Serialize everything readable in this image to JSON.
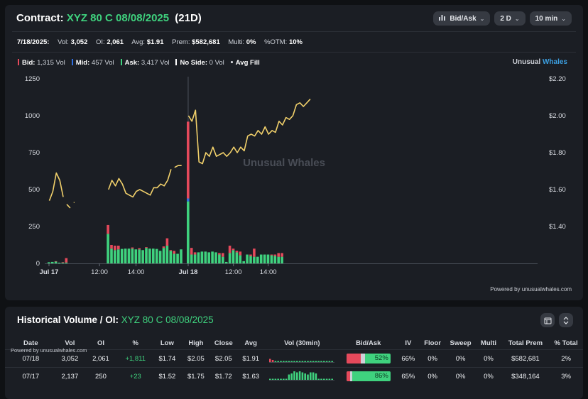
{
  "header": {
    "label": "Contract:",
    "contract": "XYZ 80 C 08/08/2025",
    "dte": "(21D)",
    "controls": [
      {
        "label": "Bid/Ask",
        "icon": "bar-chart-icon"
      },
      {
        "label": "2 D"
      },
      {
        "label": "10 min"
      }
    ]
  },
  "stats": {
    "date": "7/18/2025:",
    "items": [
      {
        "label": "Vol:",
        "value": "3,052"
      },
      {
        "label": "OI:",
        "value": "2,061"
      },
      {
        "label": "Avg:",
        "value": "$1.91"
      },
      {
        "label": "Prem:",
        "value": "$582,681"
      },
      {
        "label": "Multi:",
        "value": "0%"
      },
      {
        "label": "%OTM:",
        "value": "10%"
      }
    ]
  },
  "legend": [
    {
      "label": "Bid:",
      "value": "1,315 Vol",
      "color": "#e5495b"
    },
    {
      "label": "Mid:",
      "value": "457 Vol",
      "color": "#2f6fe0"
    },
    {
      "label": "Ask:",
      "value": "3,417 Vol",
      "color": "#3fd27e"
    },
    {
      "label": "No Side:",
      "value": "0 Vol",
      "color": "#ffffff"
    },
    {
      "label": "Avg Fill",
      "value": "",
      "color": "#f2d16b"
    }
  ],
  "brand": {
    "a": "Unusual",
    "b": "Whales"
  },
  "watermark": "Unusual Whales",
  "powered": "Powered by unusualwhales.com",
  "chart_data": {
    "type": "bar+line",
    "x_ticks": [
      "Jul 17",
      "12:00",
      "14:00",
      "Jul 18",
      "12:00",
      "14:00"
    ],
    "y_left_ticks": [
      "0",
      "250",
      "500",
      "750",
      "1000",
      "1250"
    ],
    "y_right_ticks": [
      "$1.40",
      "$1.60",
      "$1.80",
      "$2.00",
      "$2.20"
    ],
    "ylim_left": [
      0,
      1250
    ],
    "ylim_right": [
      1.2,
      2.2
    ],
    "volume_bars": [
      [
        0,
        8,
        0,
        0
      ],
      [
        1,
        10,
        0,
        0
      ],
      [
        2,
        12,
        0,
        3
      ],
      [
        3,
        5,
        0,
        0
      ],
      [
        4,
        5,
        0,
        3
      ],
      [
        5,
        6,
        0,
        30
      ],
      [
        17,
        200,
        0,
        60
      ],
      [
        18,
        100,
        0,
        25
      ],
      [
        19,
        90,
        0,
        30
      ],
      [
        20,
        95,
        0,
        25
      ],
      [
        21,
        98,
        0,
        0
      ],
      [
        22,
        100,
        0,
        0
      ],
      [
        23,
        100,
        0,
        0
      ],
      [
        24,
        100,
        0,
        8
      ],
      [
        25,
        95,
        0,
        0
      ],
      [
        26,
        95,
        0,
        8
      ],
      [
        27,
        90,
        0,
        0
      ],
      [
        28,
        105,
        0,
        5
      ],
      [
        29,
        100,
        0,
        0
      ],
      [
        30,
        100,
        0,
        0
      ],
      [
        31,
        98,
        0,
        0
      ],
      [
        32,
        85,
        0,
        0
      ],
      [
        33,
        105,
        0,
        10
      ],
      [
        34,
        120,
        0,
        50
      ],
      [
        35,
        85,
        0,
        5
      ],
      [
        36,
        65,
        0,
        20
      ],
      [
        37,
        65,
        0,
        0
      ],
      [
        38,
        95,
        0,
        0
      ],
      [
        40,
        420,
        20,
        520
      ],
      [
        41,
        60,
        0,
        45
      ],
      [
        42,
        60,
        0,
        15
      ],
      [
        43,
        75,
        0,
        0
      ],
      [
        44,
        80,
        0,
        0
      ],
      [
        45,
        80,
        0,
        0
      ],
      [
        46,
        75,
        0,
        0
      ],
      [
        47,
        80,
        0,
        0
      ],
      [
        48,
        75,
        0,
        0
      ],
      [
        49,
        60,
        0,
        10
      ],
      [
        50,
        45,
        0,
        25
      ],
      [
        51,
        10,
        0,
        0
      ],
      [
        52,
        70,
        0,
        50
      ],
      [
        53,
        90,
        0,
        10
      ],
      [
        54,
        75,
        0,
        10
      ],
      [
        55,
        55,
        0,
        25
      ],
      [
        56,
        15,
        0,
        0
      ],
      [
        57,
        60,
        0,
        0
      ],
      [
        58,
        50,
        0,
        10
      ],
      [
        59,
        45,
        0,
        55
      ],
      [
        60,
        45,
        0,
        0
      ],
      [
        61,
        60,
        0,
        0
      ],
      [
        62,
        60,
        0,
        0
      ],
      [
        63,
        60,
        0,
        0
      ],
      [
        64,
        55,
        0,
        5
      ],
      [
        65,
        50,
        0,
        10
      ],
      [
        66,
        45,
        0,
        25
      ],
      [
        67,
        45,
        0,
        25
      ]
    ],
    "avg_fill_segments": [
      [
        [
          0,
          1.54
        ],
        [
          1,
          1.59
        ],
        [
          2,
          1.69
        ],
        [
          3,
          1.65
        ],
        [
          4,
          1.56
        ]
      ],
      [
        [
          5,
          1.52
        ],
        [
          6,
          1.5
        ]
      ],
      [
        [
          7,
          1.53
        ],
        [
          7.2,
          1.53
        ]
      ],
      [
        [
          17,
          1.6
        ],
        [
          18,
          1.65
        ],
        [
          19,
          1.62
        ],
        [
          20,
          1.66
        ],
        [
          21,
          1.63
        ],
        [
          22,
          1.58
        ],
        [
          23,
          1.57
        ],
        [
          24,
          1.56
        ],
        [
          25,
          1.59
        ],
        [
          26,
          1.6
        ],
        [
          27,
          1.59
        ],
        [
          28,
          1.58
        ],
        [
          29,
          1.57
        ],
        [
          30,
          1.61
        ],
        [
          31,
          1.61
        ],
        [
          32,
          1.63
        ],
        [
          33,
          1.62
        ],
        [
          34,
          1.65
        ],
        [
          35,
          1.71
        ]
      ],
      [
        [
          36,
          1.72
        ],
        [
          37,
          1.73
        ],
        [
          38,
          1.73
        ]
      ],
      [
        [
          40,
          2.0
        ],
        [
          41,
          1.97
        ],
        [
          42,
          2.03
        ],
        [
          43,
          1.75
        ],
        [
          44,
          1.74
        ],
        [
          45,
          1.8
        ],
        [
          46,
          1.78
        ],
        [
          47,
          1.83
        ],
        [
          48,
          1.78
        ],
        [
          49,
          1.79
        ],
        [
          50,
          1.8
        ],
        [
          51,
          1.78
        ],
        [
          52,
          1.8
        ],
        [
          53,
          1.83
        ],
        [
          54,
          1.8
        ],
        [
          55,
          1.83
        ],
        [
          56,
          1.81
        ],
        [
          57,
          1.89
        ],
        [
          58,
          1.9
        ],
        [
          59,
          1.89
        ],
        [
          60,
          1.92
        ],
        [
          61,
          1.9
        ],
        [
          62,
          1.94
        ],
        [
          63,
          1.9
        ],
        [
          64,
          1.92
        ],
        [
          65,
          1.91
        ],
        [
          66,
          1.97
        ],
        [
          67,
          1.95
        ],
        [
          68,
          1.99
        ],
        [
          69,
          1.98
        ],
        [
          70,
          2.0
        ],
        [
          71,
          2.06
        ],
        [
          72,
          2.07
        ],
        [
          73,
          2.05
        ],
        [
          74,
          2.07
        ],
        [
          75,
          2.09
        ]
      ]
    ]
  },
  "history": {
    "title": "Historical Volume / OI:",
    "contract": "XYZ 80 C 08/08/2025",
    "powered": "Powered by unusualwhales.com",
    "columns": [
      "Date",
      "Vol",
      "OI",
      "%",
      "Low",
      "High",
      "Close",
      "Avg",
      "Vol (30min)",
      "Bid/Ask",
      "IV",
      "Floor",
      "Sweep",
      "Multi",
      "Total Prem",
      "% Total"
    ],
    "rows": [
      {
        "date": "07/18",
        "vol": "3,052",
        "oi": "2,061",
        "chg": "+1,811",
        "low": "$1.74",
        "high": "$2.05",
        "close": "$2.05",
        "avg": "$1.91",
        "bid_pct": 0.33,
        "mid_pct": 0.1,
        "ask_label": "52%",
        "iv": "66%",
        "floor": "0%",
        "sweep": "0%",
        "multi": "0%",
        "prem": "$582,681",
        "pct_total": "2%"
      },
      {
        "date": "07/17",
        "vol": "2,137",
        "oi": "250",
        "chg": "+23",
        "low": "$1.52",
        "high": "$1.75",
        "close": "$1.72",
        "avg": "$1.63",
        "bid_pct": 0.08,
        "mid_pct": 0.04,
        "ask_label": "86%",
        "iv": "65%",
        "floor": "0%",
        "sweep": "0%",
        "multi": "0%",
        "prem": "$348,164",
        "pct_total": "3%"
      }
    ]
  }
}
